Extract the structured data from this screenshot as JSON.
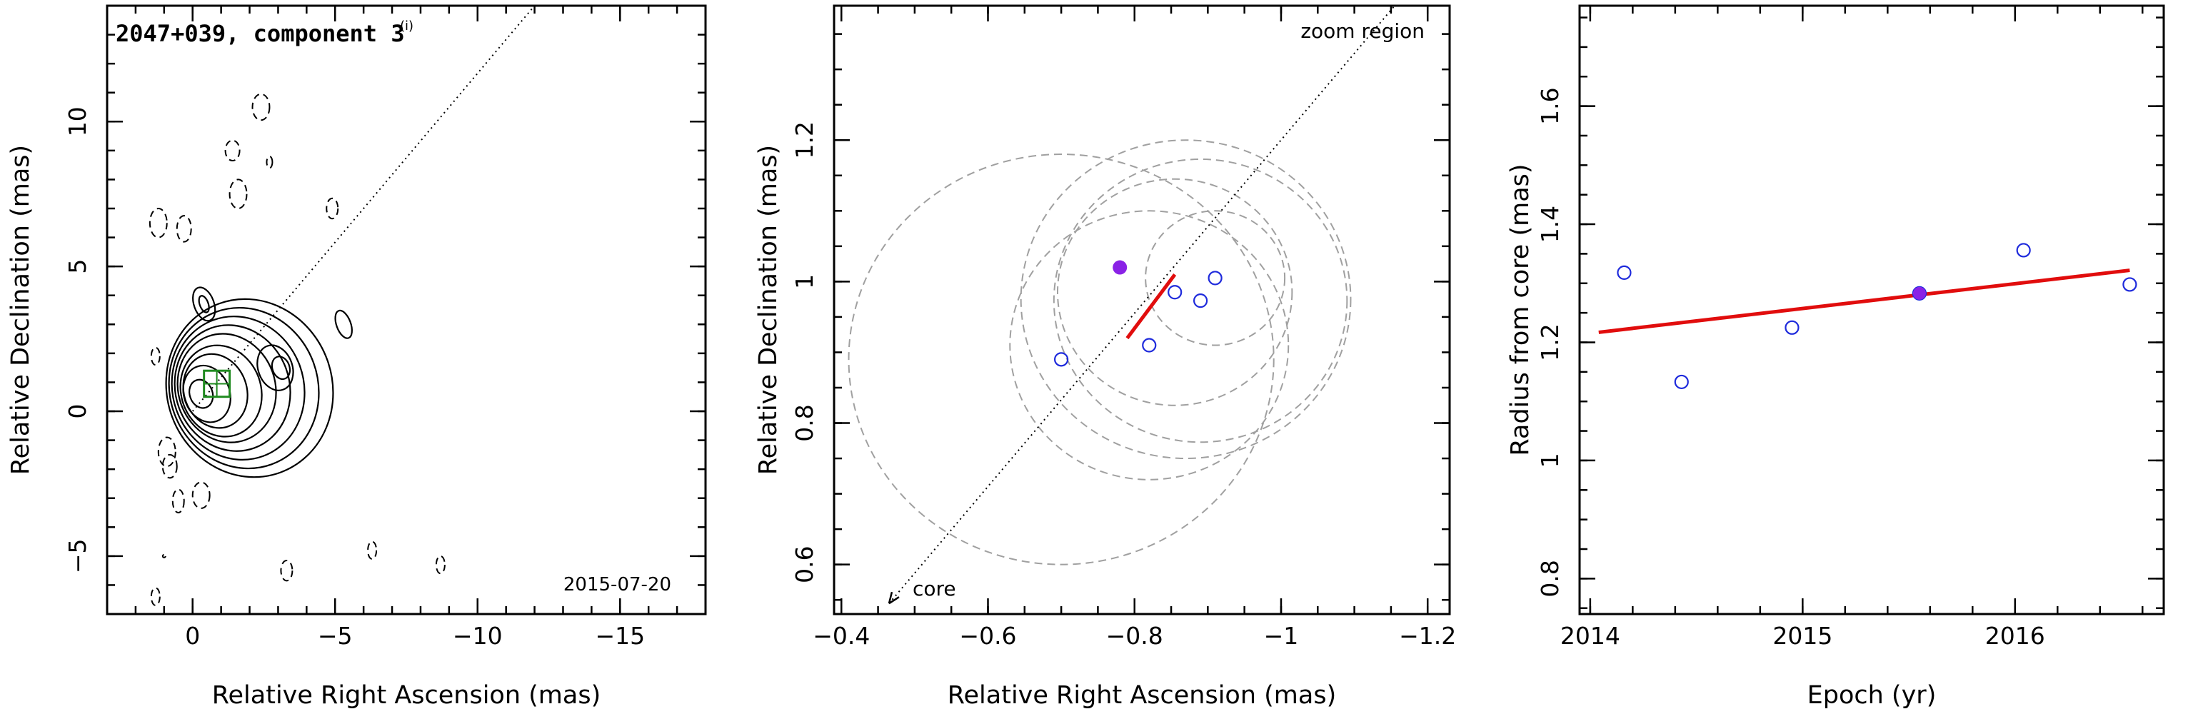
{
  "chart_data": [
    {
      "type": "contour",
      "title": "2047+039, component 3",
      "title_marker": "(i)",
      "annotation": "2015-07-20",
      "xlabel": "Relative Right Ascension (mas)",
      "ylabel": "Relative Declination (mas)",
      "xlim": [
        3,
        -18
      ],
      "ylim": [
        -7,
        14
      ],
      "xticks": [
        0,
        -5,
        -10,
        -15
      ],
      "yticks": [
        -5,
        0,
        5,
        10
      ],
      "jet_axis": {
        "from": [
          0,
          0
        ],
        "to": [
          -12,
          14
        ]
      },
      "zoom_box": {
        "center": [
          -0.85,
          0.95
        ],
        "size": 0.9
      },
      "positive_contours": [
        {
          "cx": -0.3,
          "cy": 0.6,
          "rx": 0.4,
          "ry": 0.5
        },
        {
          "cx": -0.5,
          "cy": 0.6,
          "rx": 0.8,
          "ry": 1.0
        },
        {
          "cx": -0.8,
          "cy": 0.7,
          "rx": 1.1,
          "ry": 1.3
        },
        {
          "cx": -1.0,
          "cy": 0.7,
          "rx": 1.4,
          "ry": 1.6
        },
        {
          "cx": -1.2,
          "cy": 0.8,
          "rx": 1.7,
          "ry": 1.9
        },
        {
          "cx": -1.4,
          "cy": 0.8,
          "rx": 2.0,
          "ry": 2.2
        },
        {
          "cx": -1.6,
          "cy": 0.8,
          "rx": 2.3,
          "ry": 2.5
        },
        {
          "cx": -1.8,
          "cy": 0.8,
          "rx": 2.6,
          "ry": 2.8
        },
        {
          "cx": -2.0,
          "cy": 0.8,
          "rx": 2.9,
          "ry": 3.1
        },
        {
          "cx": -3.1,
          "cy": 1.5,
          "rx": 0.3,
          "ry": 0.4
        },
        {
          "cx": -2.9,
          "cy": 1.5,
          "rx": 0.6,
          "ry": 0.8
        },
        {
          "cx": -0.4,
          "cy": 3.7,
          "rx": 0.35,
          "ry": 0.6
        },
        {
          "cx": -0.4,
          "cy": 3.7,
          "rx": 0.15,
          "ry": 0.3
        },
        {
          "cx": -5.3,
          "cy": 3.0,
          "rx": 0.25,
          "ry": 0.5
        }
      ],
      "negative_contours": [
        {
          "cx": -2.4,
          "cy": 10.5,
          "rx": 0.3,
          "ry": 0.45
        },
        {
          "cx": -2.7,
          "cy": 8.6,
          "rx": 0.1,
          "ry": 0.2
        },
        {
          "cx": -1.4,
          "cy": 9.0,
          "rx": 0.25,
          "ry": 0.35
        },
        {
          "cx": -1.6,
          "cy": 7.5,
          "rx": 0.3,
          "ry": 0.5
        },
        {
          "cx": -4.9,
          "cy": 7.0,
          "rx": 0.2,
          "ry": 0.35
        },
        {
          "cx": 1.2,
          "cy": 6.5,
          "rx": 0.3,
          "ry": 0.5
        },
        {
          "cx": 0.3,
          "cy": 6.3,
          "rx": 0.25,
          "ry": 0.45
        },
        {
          "cx": 1.3,
          "cy": 1.9,
          "rx": 0.15,
          "ry": 0.3
        },
        {
          "cx": 0.9,
          "cy": -1.4,
          "rx": 0.3,
          "ry": 0.5
        },
        {
          "cx": 0.8,
          "cy": -1.9,
          "rx": 0.25,
          "ry": 0.4
        },
        {
          "cx": 0.5,
          "cy": -3.1,
          "rx": 0.2,
          "ry": 0.4
        },
        {
          "cx": -0.3,
          "cy": -2.9,
          "rx": 0.3,
          "ry": 0.45
        },
        {
          "cx": -3.3,
          "cy": -5.5,
          "rx": 0.2,
          "ry": 0.35
        },
        {
          "cx": -6.3,
          "cy": -4.8,
          "rx": 0.15,
          "ry": 0.3
        },
        {
          "cx": -8.7,
          "cy": -5.3,
          "rx": 0.15,
          "ry": 0.3
        },
        {
          "cx": 1.3,
          "cy": -6.4,
          "rx": 0.15,
          "ry": 0.3
        },
        {
          "cx": 1.0,
          "cy": -5.0,
          "rx": 0.05,
          "ry": 0.05
        }
      ]
    },
    {
      "type": "scatter",
      "annotation": "zoom region",
      "core_label": "core",
      "xlabel": "Relative Right Ascension (mas)",
      "ylabel": "Relative Declination (mas)",
      "xlim": [
        -0.39,
        -1.23
      ],
      "ylim": [
        0.53,
        1.39
      ],
      "xticks": [
        -0.4,
        -0.6,
        -0.8,
        -1,
        -1.2
      ],
      "yticks": [
        0.6,
        0.8,
        1,
        1.2
      ],
      "jet_axis": {
        "from": [
          -0.465,
          0.545
        ],
        "to": [
          -1.155,
          1.39
        ]
      },
      "observed": [
        {
          "x": -0.7,
          "y": 0.89,
          "r": 0.29
        },
        {
          "x": -0.82,
          "y": 0.91,
          "r": 0.19
        },
        {
          "x": -0.855,
          "y": 0.985,
          "r": 0.16
        },
        {
          "x": -0.89,
          "y": 0.973,
          "r": 0.2
        },
        {
          "x": -0.91,
          "y": 1.005,
          "r": 0.095
        },
        {
          "x": -0.87,
          "y": 0.975,
          "r": 0.225
        }
      ],
      "predicted": {
        "x": -0.78,
        "y": 1.02
      },
      "fit_track": {
        "from": [
          -0.79,
          0.92
        ],
        "to": [
          -0.855,
          1.01
        ]
      }
    },
    {
      "type": "scatter",
      "xlabel": "Epoch (yr)",
      "ylabel": "Radius from core (mas)",
      "xlim": [
        2013.95,
        2016.7
      ],
      "ylim": [
        0.74,
        1.77
      ],
      "xticks": [
        2014,
        2015,
        2016
      ],
      "yticks": [
        0.8,
        1,
        1.2,
        1.4,
        1.6
      ],
      "observed": [
        {
          "x": 2014.16,
          "y": 1.318
        },
        {
          "x": 2014.43,
          "y": 1.133
        },
        {
          "x": 2014.95,
          "y": 1.225
        },
        {
          "x": 2015.55,
          "y": 1.283
        },
        {
          "x": 2016.04,
          "y": 1.356
        },
        {
          "x": 2016.54,
          "y": 1.298
        }
      ],
      "predicted": {
        "x": 2015.55,
        "y": 1.283
      },
      "fit": {
        "x": [
          2014.04,
          2016.54
        ],
        "y": [
          1.217,
          1.322
        ]
      }
    }
  ]
}
